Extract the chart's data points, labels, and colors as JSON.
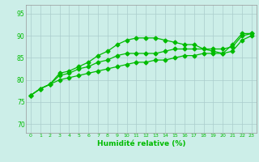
{
  "xlabel": "Humidité relative (%)",
  "bg_color": "#cceee8",
  "grid_color": "#aacccc",
  "line_color": "#00bb00",
  "xlim": [
    -0.5,
    23.5
  ],
  "ylim": [
    68,
    97
  ],
  "yticks": [
    70,
    75,
    80,
    85,
    90,
    95
  ],
  "xticks": [
    0,
    1,
    2,
    3,
    4,
    5,
    6,
    7,
    8,
    9,
    10,
    11,
    12,
    13,
    14,
    15,
    16,
    17,
    18,
    19,
    20,
    21,
    22,
    23
  ],
  "line1_x": [
    0,
    1,
    2,
    3,
    4,
    5,
    6,
    7,
    8,
    9,
    10,
    11,
    12,
    13,
    14,
    15,
    16,
    17,
    18,
    19,
    20,
    21,
    22,
    23
  ],
  "line1_y": [
    76.5,
    78,
    79,
    81.5,
    82,
    83,
    84,
    85.5,
    86.5,
    88,
    89,
    89.5,
    89.5,
    89.5,
    89,
    88.5,
    88,
    88,
    87,
    86.5,
    86,
    88,
    90.5,
    90.5
  ],
  "line2_x": [
    0,
    1,
    2,
    3,
    4,
    5,
    6,
    7,
    8,
    9,
    10,
    11,
    12,
    13,
    14,
    15,
    16,
    17,
    18,
    19,
    20,
    21,
    22,
    23
  ],
  "line2_y": [
    76.5,
    78,
    79,
    81,
    81.5,
    82.5,
    83,
    84,
    84.5,
    85.5,
    86,
    86,
    86,
    86,
    86.5,
    87,
    87,
    87,
    87,
    87,
    87,
    87.5,
    90,
    90.5
  ],
  "line3_x": [
    0,
    1,
    2,
    3,
    4,
    5,
    6,
    7,
    8,
    9,
    10,
    11,
    12,
    13,
    14,
    15,
    16,
    17,
    18,
    19,
    20,
    21,
    22,
    23
  ],
  "line3_y": [
    76.5,
    78,
    79,
    80,
    80.5,
    81,
    81.5,
    82,
    82.5,
    83,
    83.5,
    84,
    84,
    84.5,
    84.5,
    85,
    85.5,
    85.5,
    86,
    86,
    86,
    86.5,
    89,
    90
  ]
}
